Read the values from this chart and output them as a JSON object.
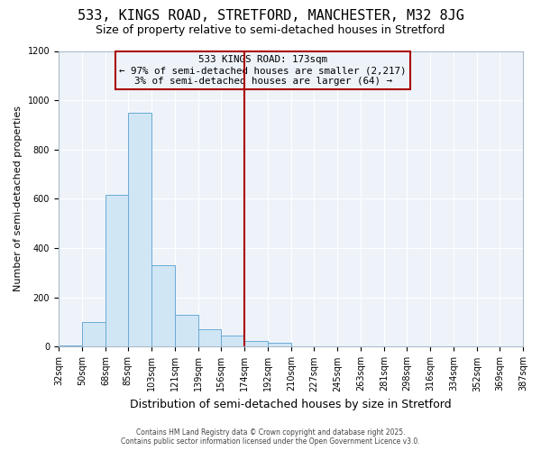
{
  "title": "533, KINGS ROAD, STRETFORD, MANCHESTER, M32 8JG",
  "subtitle": "Size of property relative to semi-detached houses in Stretford",
  "xlabel": "Distribution of semi-detached houses by size in Stretford",
  "ylabel": "Number of semi-detached properties",
  "bin_edges": [
    32,
    50,
    68,
    85,
    103,
    121,
    139,
    156,
    174,
    192,
    210,
    227,
    245,
    263,
    281,
    298,
    316,
    334,
    352,
    369,
    387
  ],
  "bar_heights": [
    5,
    100,
    615,
    950,
    330,
    130,
    70,
    45,
    25,
    15,
    0,
    0,
    0,
    0,
    0,
    0,
    0,
    0,
    0,
    0
  ],
  "bar_color": "#d0e6f5",
  "bar_edge_color": "#6aaad4",
  "vline_x": 174,
  "vline_color": "#aa0000",
  "annotation_title": "533 KINGS ROAD: 173sqm",
  "annotation_line1": "← 97% of semi-detached houses are smaller (2,217)",
  "annotation_line2": "3% of semi-detached houses are larger (64) →",
  "annotation_box_edgecolor": "#aa0000",
  "ylim": [
    0,
    1200
  ],
  "yticks": [
    0,
    200,
    400,
    600,
    800,
    1000,
    1200
  ],
  "background_color": "#ffffff",
  "plot_bg_color": "#eef3fa",
  "grid_color": "#ffffff",
  "footer_line1": "Contains HM Land Registry data © Crown copyright and database right 2025.",
  "footer_line2": "Contains public sector information licensed under the Open Government Licence v3.0.",
  "title_fontsize": 11,
  "subtitle_fontsize": 9,
  "tick_fontsize": 7,
  "ylabel_fontsize": 8,
  "xlabel_fontsize": 9
}
